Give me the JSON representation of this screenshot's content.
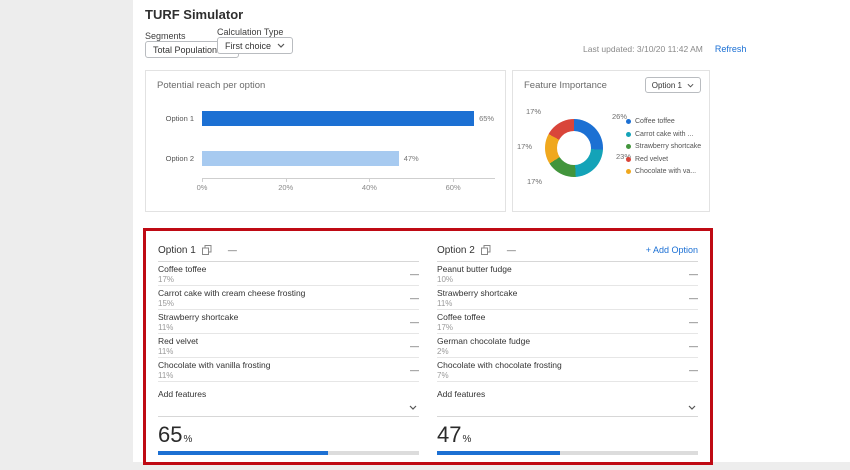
{
  "page": {
    "title": "TURF Simulator",
    "last_updated": "Last updated: 3/10/20 11:42 AM",
    "refresh_label": "Refresh"
  },
  "colors": {
    "accent_blue": "#1c70d3",
    "light_blue": "#a7caf0",
    "highlight_red": "#bf0a14"
  },
  "filters": {
    "segments": {
      "label": "Segments",
      "value": "Total Population"
    },
    "calculation_type": {
      "label": "Calculation Type",
      "value": "First choice"
    }
  },
  "chart_data": [
    {
      "type": "bar",
      "orientation": "horizontal",
      "title": "Potential reach per option",
      "categories": [
        "Option 1",
        "Option 2"
      ],
      "values": [
        65,
        47
      ],
      "value_labels": [
        "65%",
        "47%"
      ],
      "bar_colors": [
        "#1c70d3",
        "#a7caf0"
      ],
      "xticks": [
        0,
        20,
        40,
        60
      ],
      "xtick_labels": [
        "0%",
        "20%",
        "40%",
        "60%"
      ],
      "xlim": [
        0,
        70
      ],
      "grid": false,
      "legend": "none"
    },
    {
      "type": "pie",
      "subtype": "donut",
      "title": "Feature Importance",
      "selected_option": "Option 1",
      "segments": [
        {
          "label": "26%",
          "value": 26,
          "color": "#1c70d3"
        },
        {
          "label": "23%",
          "value": 23,
          "color": "#14a3b8"
        },
        {
          "label": "17%",
          "value": 17,
          "color": "#42953c"
        },
        {
          "label": "17%",
          "value": 17,
          "color": "#f0a81e"
        },
        {
          "label": "17%",
          "value": 17,
          "color": "#d9453a"
        }
      ],
      "legend_position": "right",
      "legend": [
        {
          "label": "Coffee toffee",
          "color": "#1c70d3"
        },
        {
          "label": "Carrot cake with ...",
          "color": "#14a3b8"
        },
        {
          "label": "Strawberry shortcake",
          "color": "#42953c"
        },
        {
          "label": "Red velvet",
          "color": "#d9453a"
        },
        {
          "label": "Chocolate with va...",
          "color": "#f0a81e"
        }
      ]
    }
  ],
  "options_panel": {
    "add_option_label": "+ Add Option",
    "add_features_label": "Add features",
    "remove_glyph": "—",
    "options": [
      {
        "name": "Option 1",
        "reach_value": "65",
        "reach_unit": "%",
        "reach_pct": 65,
        "features": [
          {
            "name": "Coffee toffee",
            "pct": "17%"
          },
          {
            "name": "Carrot cake with cream cheese frosting",
            "pct": "15%"
          },
          {
            "name": "Strawberry shortcake",
            "pct": "11%"
          },
          {
            "name": "Red velvet",
            "pct": "11%"
          },
          {
            "name": "Chocolate with vanilla frosting",
            "pct": "11%"
          }
        ]
      },
      {
        "name": "Option 2",
        "reach_value": "47",
        "reach_unit": "%",
        "reach_pct": 47,
        "features": [
          {
            "name": "Peanut butter fudge",
            "pct": "10%"
          },
          {
            "name": "Strawberry shortcake",
            "pct": "11%"
          },
          {
            "name": "Coffee toffee",
            "pct": "17%"
          },
          {
            "name": "German chocolate fudge",
            "pct": "2%"
          },
          {
            "name": "Chocolate with chocolate frosting",
            "pct": "7%"
          }
        ]
      }
    ]
  }
}
